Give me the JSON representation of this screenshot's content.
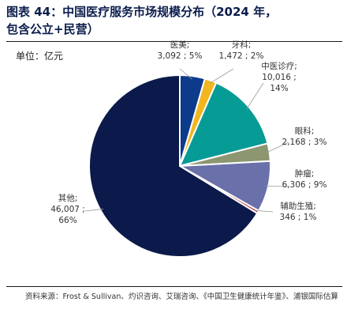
{
  "header": {
    "title_line1": "图表 44：中国医疗服务市场规模分布（2024 年，",
    "title_line2": "包含公立+民营）"
  },
  "unit_label": "单位：亿元",
  "source": "资料来源：Frost & Sullivan、灼识咨询、艾瑞咨询、《中国卫生健康统计年鉴》、浦银国际估算",
  "chart_data": {
    "type": "pie",
    "unit": "亿元",
    "start_angle_deg": 0,
    "direction": "clockwise",
    "slices": [
      {
        "name": "医美",
        "value": 3092,
        "value_text": "3,092",
        "pct": "5%",
        "color": "#0d3b8c",
        "label_lines": [
          "医美;",
          "3,092 ; 5%"
        ]
      },
      {
        "name": "牙科",
        "value": 1472,
        "value_text": "1,472",
        "pct": "2%",
        "color": "#f3b61f",
        "label_lines": [
          "牙科;",
          "1,472 ; 2%"
        ]
      },
      {
        "name": "中医诊疗",
        "value": 10016,
        "value_text": "10,016",
        "pct": "14%",
        "color": "#079b96",
        "label_lines": [
          "中医诊疗;",
          "10,016 ;",
          "14%"
        ]
      },
      {
        "name": "眼科",
        "value": 2168,
        "value_text": "2,168",
        "pct": "3%",
        "color": "#8c9670",
        "label_lines": [
          "眼科;",
          "2,168 ; 3%"
        ]
      },
      {
        "name": "肿瘤",
        "value": 6306,
        "value_text": "6,306",
        "pct": "9%",
        "color": "#6a70aa",
        "label_lines": [
          "肿瘤;",
          "6,306 ; 9%"
        ]
      },
      {
        "name": "辅助生殖",
        "value": 346,
        "value_text": "346",
        "pct": "1%",
        "color": "#b83a3a",
        "label_lines": [
          "辅助生殖;",
          "346 ; 1%"
        ]
      },
      {
        "name": "其他",
        "value": 46007,
        "value_text": "46,007",
        "pct": "66%",
        "color": "#0b1a4a",
        "label_lines": [
          "其他;",
          "46,007 ;",
          "66%"
        ]
      }
    ]
  }
}
